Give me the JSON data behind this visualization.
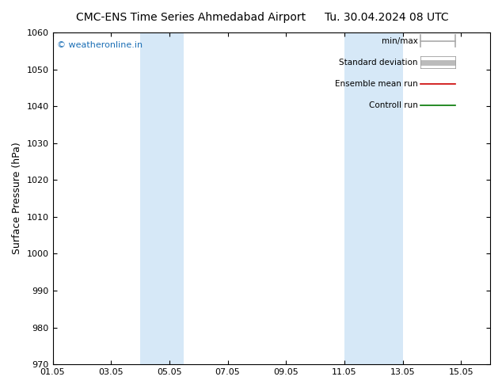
{
  "title_left": "CMC-ENS Time Series Ahmedabad Airport",
  "title_right": "Tu. 30.04.2024 08 UTC",
  "ylabel": "Surface Pressure (hPa)",
  "ylim": [
    970,
    1060
  ],
  "yticks": [
    970,
    980,
    990,
    1000,
    1010,
    1020,
    1030,
    1040,
    1050,
    1060
  ],
  "xlim_start": "2024-05-01",
  "xlim_end": "2024-05-16",
  "xtick_labels": [
    "01.05",
    "03.05",
    "05.05",
    "07.05",
    "09.05",
    "11.05",
    "13.05",
    "15.05"
  ],
  "xtick_dates": [
    "2024-05-01",
    "2024-05-03",
    "2024-05-05",
    "2024-05-07",
    "2024-05-09",
    "2024-05-11",
    "2024-05-13",
    "2024-05-15"
  ],
  "shaded_bands": [
    {
      "start": "2024-05-04 00:00",
      "end": "2024-05-05 12:00",
      "color": "#d6e8f7"
    },
    {
      "start": "2024-05-11 00:00",
      "end": "2024-05-13 00:00",
      "color": "#d6e8f7"
    }
  ],
  "watermark": "© weatheronline.in",
  "watermark_color": "#1a6eb5",
  "legend_items": [
    {
      "label": "min/max",
      "color": "#aaaaaa",
      "lw": 1.2,
      "type": "minmax"
    },
    {
      "label": "Standard deviation",
      "color": "#bbbbbb",
      "lw": 5,
      "type": "thick"
    },
    {
      "label": "Ensemble mean run",
      "color": "#cc0000",
      "lw": 1.2,
      "type": "line"
    },
    {
      "label": "Controll run",
      "color": "#007700",
      "lw": 1.2,
      "type": "line"
    }
  ],
  "bg_color": "#ffffff",
  "plot_bg_color": "#ffffff",
  "border_color": "#000000",
  "title_fontsize": 10,
  "ylabel_fontsize": 9,
  "tick_fontsize": 8,
  "legend_fontsize": 7.5
}
